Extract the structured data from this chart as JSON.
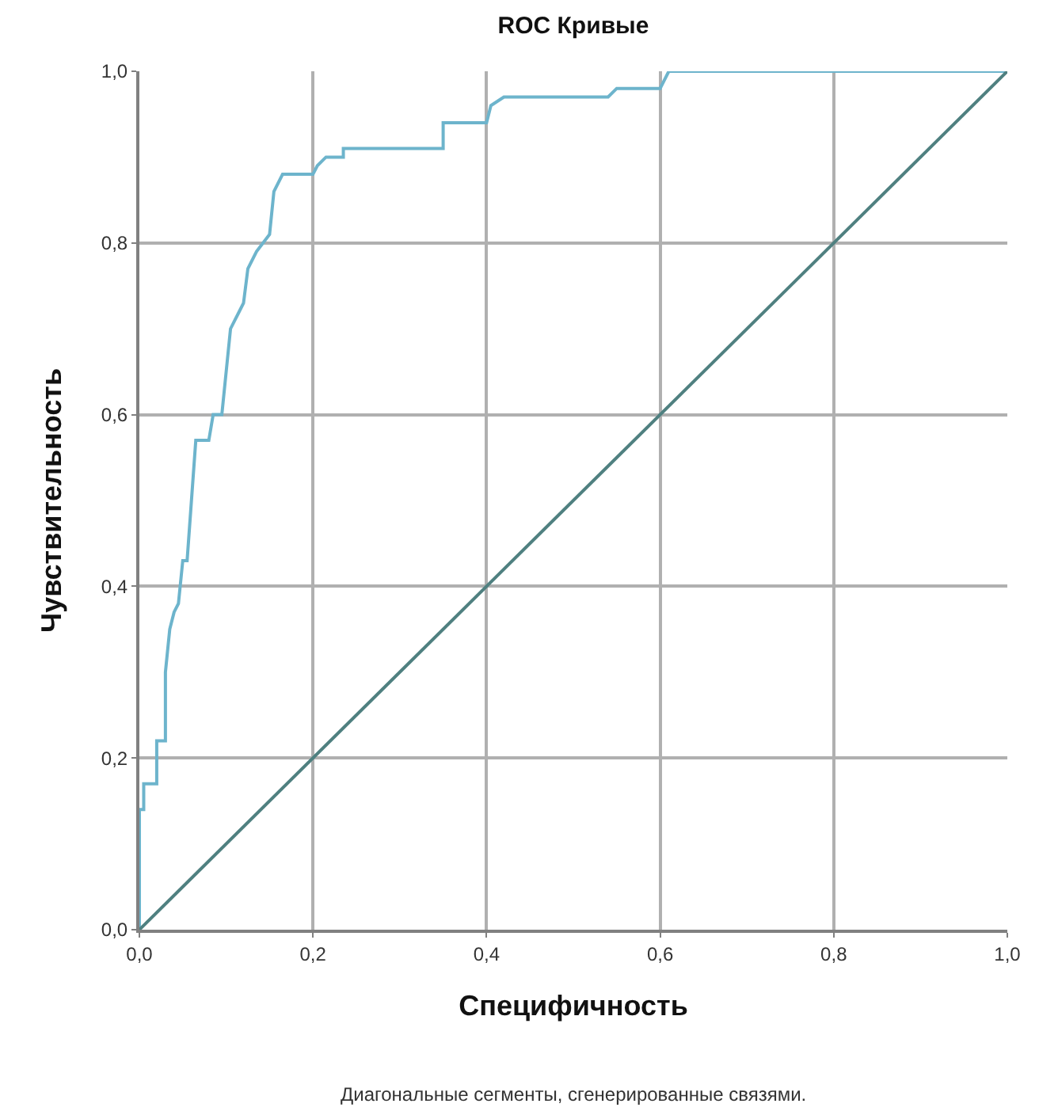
{
  "chart_data": {
    "type": "line",
    "title": "ROC Кривые",
    "xlabel": "Специфичность",
    "ylabel": "Чувствительность",
    "annotations": [
      "Диагональные сегменты, сгенерированные связями."
    ],
    "xlim": [
      0,
      1
    ],
    "ylim": [
      0,
      1
    ],
    "xticks": [
      {
        "value": 0,
        "label": "0,0"
      },
      {
        "value": 0.2,
        "label": "0,2"
      },
      {
        "value": 0.4,
        "label": "0,4"
      },
      {
        "value": 0.6,
        "label": "0,6"
      },
      {
        "value": 0.8,
        "label": "0,8"
      },
      {
        "value": 1,
        "label": "1,0"
      }
    ],
    "yticks": [
      {
        "value": 0,
        "label": "0,0"
      },
      {
        "value": 0.2,
        "label": "0,2"
      },
      {
        "value": 0.4,
        "label": "0,4"
      },
      {
        "value": 0.6,
        "label": "0,6"
      },
      {
        "value": 0.8,
        "label": "0,8"
      },
      {
        "value": 1,
        "label": "1,0"
      }
    ],
    "grid": true,
    "marker": "none",
    "series": [
      {
        "color": "#6db4cc",
        "x": [
          0,
          0,
          0.005,
          0.005,
          0.02,
          0.02,
          0.03,
          0.03,
          0.035,
          0.04,
          0.045,
          0.05,
          0.055,
          0.06,
          0.065,
          0.08,
          0.085,
          0.095,
          0.1,
          0.105,
          0.115,
          0.12,
          0.125,
          0.135,
          0.15,
          0.155,
          0.165,
          0.2,
          0.205,
          0.215,
          0.235,
          0.235,
          0.35,
          0.35,
          0.4,
          0.405,
          0.42,
          0.54,
          0.55,
          0.6,
          0.605,
          0.61,
          1.0
        ],
        "values": [
          0,
          0.14,
          0.14,
          0.17,
          0.17,
          0.22,
          0.22,
          0.3,
          0.35,
          0.37,
          0.38,
          0.43,
          0.43,
          0.5,
          0.57,
          0.57,
          0.6,
          0.6,
          0.65,
          0.7,
          0.72,
          0.73,
          0.77,
          0.79,
          0.81,
          0.86,
          0.88,
          0.88,
          0.89,
          0.9,
          0.9,
          0.91,
          0.91,
          0.94,
          0.94,
          0.96,
          0.97,
          0.97,
          0.98,
          0.98,
          0.99,
          1.0,
          1.0
        ]
      },
      {
        "color": "#4f8080",
        "x": [
          0,
          1
        ],
        "values": [
          0,
          1
        ]
      }
    ]
  }
}
